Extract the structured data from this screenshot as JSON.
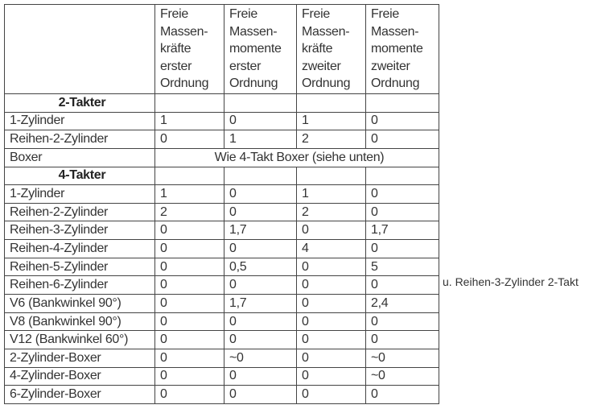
{
  "headers": [
    "",
    "Freie Massen-kräfte erster Ordnung",
    "Freie Massen-momente erster Ordnung",
    "Freie Massen-kräfte zweiter Ordnung",
    "Freie Massen-momente zweiter Ordnung"
  ],
  "rows": [
    {
      "type": "section",
      "label": "2-Takter"
    },
    {
      "label": "1-Zylinder",
      "values": [
        "1",
        "0",
        "1",
        "0"
      ]
    },
    {
      "label": "Reihen-2-Zylinder",
      "values": [
        "0",
        "1",
        "2",
        "0"
      ]
    },
    {
      "type": "span",
      "label": "Boxer",
      "text": "Wie 4-Takt Boxer (siehe unten)"
    },
    {
      "type": "section",
      "label": "4-Takter"
    },
    {
      "label": "1-Zylinder",
      "values": [
        "1",
        "0",
        "1",
        "0"
      ]
    },
    {
      "label": "Reihen-2-Zylinder",
      "values": [
        "2",
        "0",
        "2",
        "0"
      ]
    },
    {
      "label": "Reihen-3-Zylinder",
      "values": [
        "0",
        "1,7",
        "0",
        "1,7"
      ]
    },
    {
      "label": "Reihen-4-Zylinder",
      "values": [
        "0",
        "0",
        "4",
        "0"
      ]
    },
    {
      "label": "Reihen-5-Zylinder",
      "values": [
        "0",
        "0,5",
        "0",
        "5"
      ]
    },
    {
      "label": "Reihen-6-Zylinder",
      "values": [
        "0",
        "0",
        "0",
        "0"
      ]
    },
    {
      "label": "V6 (Bankwinkel 90°)",
      "values": [
        "0",
        "1,7",
        "0",
        "2,4"
      ]
    },
    {
      "label": "V8 (Bankwinkel 90°)",
      "values": [
        "0",
        "0",
        "0",
        "0"
      ]
    },
    {
      "label": "V12 (Bankwinkel 60°)",
      "values": [
        "0",
        "0",
        "0",
        "0"
      ]
    },
    {
      "label": "2-Zylinder-Boxer",
      "values": [
        "0",
        "~0",
        "0",
        "~0"
      ]
    },
    {
      "label": "4-Zylinder-Boxer",
      "values": [
        "0",
        "0",
        "0",
        "~0"
      ]
    },
    {
      "label": "6-Zylinder-Boxer",
      "values": [
        "0",
        "0",
        "0",
        "0"
      ]
    }
  ],
  "side_note": "u. Reihen-3-Zylinder 2-Takt"
}
